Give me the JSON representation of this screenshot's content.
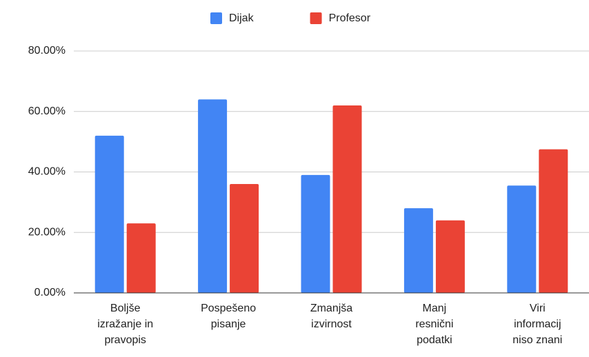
{
  "chart_data": {
    "type": "bar",
    "categories": [
      "Boljše izražanje in pravopis",
      "Pospešeno pisanje",
      "Zmanjša izvirnost",
      "Manj resnični podatki",
      "Viri informacij niso znani"
    ],
    "series": [
      {
        "name": "Dijak",
        "color": "#4285f4",
        "values": [
          52,
          64,
          39,
          28,
          35.5
        ]
      },
      {
        "name": "Profesor",
        "color": "#ea4335",
        "values": [
          23,
          36,
          62,
          24,
          47.5
        ]
      }
    ],
    "ylim": [
      0,
      80
    ],
    "yticks": [
      {
        "value": 0,
        "label": "0.00%"
      },
      {
        "value": 20,
        "label": "20.00%"
      },
      {
        "value": 40,
        "label": "40.00%"
      },
      {
        "value": 60,
        "label": "60.00%"
      },
      {
        "value": 80,
        "label": "80.00%"
      }
    ],
    "grid": true,
    "legend": "top"
  }
}
